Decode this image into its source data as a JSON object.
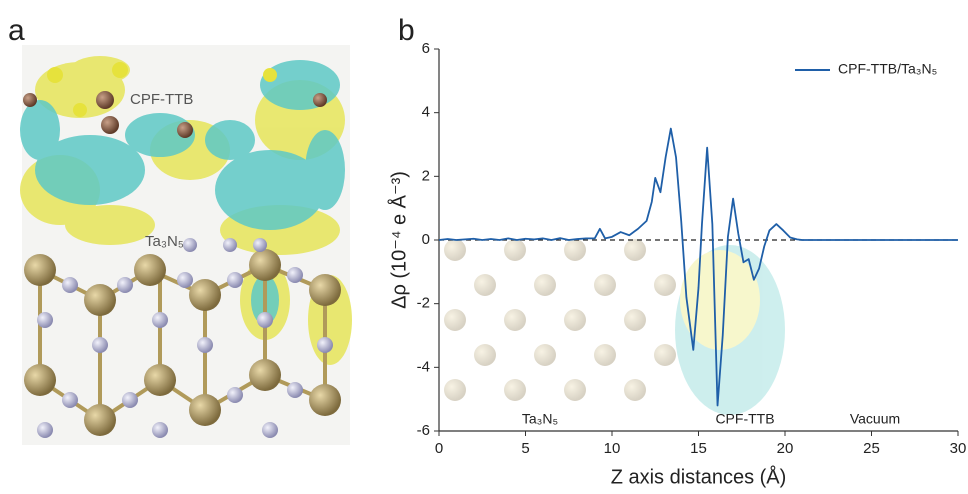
{
  "figure": {
    "panel_labels": [
      "a",
      "b"
    ],
    "image_labels": [
      "CPF-TTB",
      "Ta₃N₅"
    ]
  },
  "chart_data": {
    "type": "line",
    "xlabel": "Z axis distances (Å)",
    "ylabel": "Δρ (10⁻⁴ e Å⁻³)",
    "x": [
      0,
      0.5,
      1,
      1.5,
      2,
      2.5,
      3,
      3.5,
      4,
      4.5,
      5,
      5.5,
      6,
      6.5,
      7,
      7.5,
      8,
      8.5,
      9,
      9.3,
      9.6,
      10,
      10.5,
      11,
      11.5,
      12,
      12.3,
      12.5,
      12.8,
      13.1,
      13.4,
      13.7,
      14,
      14.3,
      14.7,
      15,
      15.2,
      15.5,
      15.8,
      16.1,
      16.4,
      16.7,
      17,
      17.3,
      17.6,
      17.9,
      18.2,
      18.5,
      18.8,
      19.1,
      19.5,
      19.9,
      20.3,
      20.7,
      21,
      22,
      24,
      26,
      28,
      30
    ],
    "series": [
      {
        "name": "CPF-TTB/Ta₃N₅",
        "color": "#1f5fa8",
        "values": [
          0,
          0.03,
          0,
          0.02,
          0.04,
          0,
          0.03,
          0,
          0.05,
          0,
          0.04,
          0.02,
          0.05,
          0,
          0.06,
          0,
          0.03,
          0.05,
          0.05,
          0.35,
          0.05,
          0.1,
          0.25,
          0.15,
          0.35,
          0.6,
          1.2,
          1.95,
          1.5,
          2.6,
          3.5,
          2.6,
          0.6,
          -1.8,
          -3.45,
          -1.5,
          0.5,
          2.9,
          0.5,
          -5.2,
          -3,
          0.1,
          1.3,
          0.2,
          -0.7,
          -0.6,
          -1.25,
          -0.9,
          -0.2,
          0.3,
          0.5,
          0.3,
          0.08,
          0.02,
          0,
          0,
          0,
          0,
          0,
          0
        ]
      }
    ],
    "xlim": [
      0,
      30
    ],
    "ylim": [
      -6,
      6
    ],
    "xticks": [
      0,
      5,
      10,
      15,
      20,
      25,
      30
    ],
    "yticks": [
      -6,
      -4,
      -2,
      0,
      2,
      4,
      6
    ],
    "reference_line": 0,
    "legend": "upper right",
    "annotations": [
      "Ta₃N₅",
      "CPF-TTB",
      "Vacuum"
    ]
  }
}
